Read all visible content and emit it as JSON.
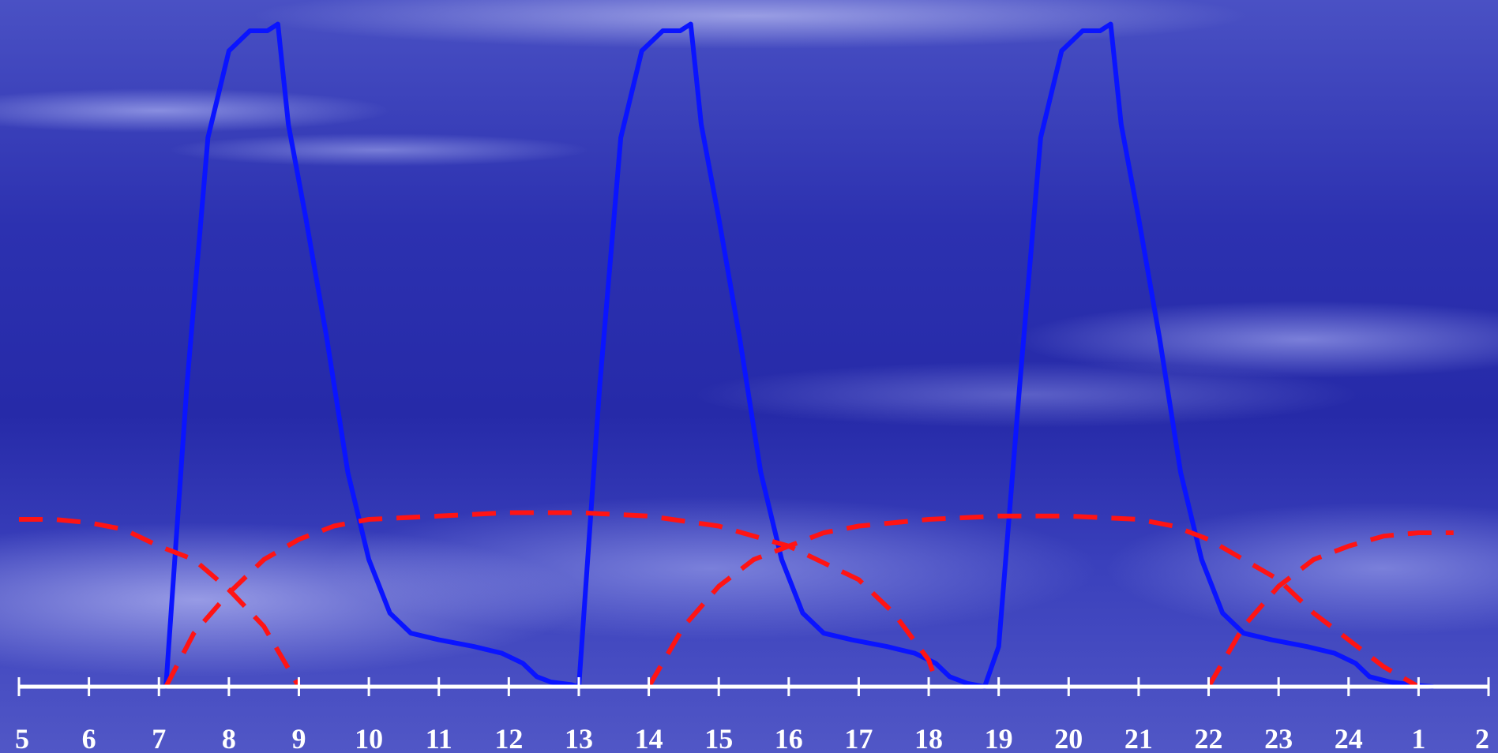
{
  "chart_data": {
    "type": "line",
    "title": "",
    "xlabel": "",
    "ylabel": "",
    "grid": false,
    "legend": "none",
    "x_tick_labels": [
      "5",
      "6",
      "7",
      "8",
      "9",
      "10",
      "11",
      "12",
      "13",
      "14",
      "15",
      "16",
      "17",
      "18",
      "19",
      "20",
      "21",
      "22",
      "23",
      "24",
      "1",
      "2"
    ],
    "xlim": [
      5,
      26
    ],
    "ylim": [
      0,
      100
    ],
    "colors": {
      "solid_line": "#0a14ff",
      "dashed_line": "#ff1414",
      "axis": "#ffffff",
      "tick_text": "#ffffff"
    },
    "series": [
      {
        "style": "solid",
        "points": [
          [
            7.1,
            0
          ],
          [
            7.4,
            45
          ],
          [
            7.7,
            82
          ],
          [
            8.0,
            95
          ],
          [
            8.3,
            98
          ],
          [
            8.55,
            98
          ],
          [
            8.7,
            99
          ],
          [
            8.85,
            84
          ],
          [
            9.1,
            70
          ],
          [
            9.4,
            52
          ],
          [
            9.7,
            32
          ],
          [
            10.0,
            19
          ],
          [
            10.3,
            11
          ],
          [
            10.6,
            8
          ],
          [
            11.0,
            7
          ],
          [
            11.5,
            6
          ],
          [
            11.9,
            5
          ],
          [
            12.2,
            3.5
          ],
          [
            12.4,
            1.5
          ],
          [
            12.6,
            0.7
          ],
          [
            12.9,
            0.3
          ],
          [
            13.0,
            0
          ],
          [
            13.3,
            45
          ],
          [
            13.6,
            82
          ],
          [
            13.9,
            95
          ],
          [
            14.2,
            98
          ],
          [
            14.45,
            98
          ],
          [
            14.6,
            99
          ],
          [
            14.75,
            84
          ],
          [
            15.0,
            70
          ],
          [
            15.3,
            52
          ],
          [
            15.6,
            32
          ],
          [
            15.9,
            19
          ],
          [
            16.2,
            11
          ],
          [
            16.5,
            8
          ],
          [
            16.9,
            7
          ],
          [
            17.4,
            6
          ],
          [
            17.8,
            5
          ],
          [
            18.1,
            3.5
          ],
          [
            18.3,
            1.5
          ],
          [
            18.55,
            0.5
          ],
          [
            18.8,
            0
          ],
          [
            19.0,
            6
          ],
          [
            19.3,
            45
          ],
          [
            19.6,
            82
          ],
          [
            19.9,
            95
          ],
          [
            20.2,
            98
          ],
          [
            20.45,
            98
          ],
          [
            20.6,
            99
          ],
          [
            20.75,
            84
          ],
          [
            21.0,
            70
          ],
          [
            21.3,
            52
          ],
          [
            21.6,
            32
          ],
          [
            21.9,
            19
          ],
          [
            22.2,
            11
          ],
          [
            22.5,
            8
          ],
          [
            22.9,
            7
          ],
          [
            23.4,
            6
          ],
          [
            23.8,
            5
          ],
          [
            24.1,
            3.5
          ],
          [
            24.3,
            1.5
          ],
          [
            24.6,
            0.7
          ],
          [
            24.9,
            0.3
          ],
          [
            25.2,
            0
          ]
        ]
      },
      {
        "style": "dashed",
        "points": [
          [
            5.0,
            25
          ],
          [
            5.5,
            25
          ],
          [
            6.0,
            24.5
          ],
          [
            6.5,
            23.5
          ],
          [
            7.0,
            21
          ],
          [
            7.5,
            19
          ],
          [
            8.0,
            14.5
          ],
          [
            8.5,
            9
          ],
          [
            9.0,
            0
          ]
        ]
      },
      {
        "style": "dashed",
        "points": [
          [
            7.1,
            0
          ],
          [
            7.5,
            8
          ],
          [
            8.0,
            14
          ],
          [
            8.5,
            19
          ],
          [
            9.0,
            22
          ],
          [
            9.5,
            24
          ],
          [
            10.0,
            25
          ],
          [
            11.0,
            25.5
          ],
          [
            12.0,
            26
          ],
          [
            13.0,
            26
          ],
          [
            14.0,
            25.5
          ],
          [
            15.0,
            24
          ],
          [
            16.0,
            21
          ],
          [
            17.0,
            16
          ],
          [
            17.5,
            11
          ],
          [
            18.0,
            4
          ],
          [
            18.1,
            1
          ]
        ]
      },
      {
        "style": "dashed",
        "points": [
          [
            14.0,
            0
          ],
          [
            14.5,
            9
          ],
          [
            15.0,
            15
          ],
          [
            15.5,
            19
          ],
          [
            16.0,
            21
          ],
          [
            16.5,
            23
          ],
          [
            17.0,
            24
          ],
          [
            18.0,
            25
          ],
          [
            19.0,
            25.5
          ],
          [
            20.0,
            25.5
          ],
          [
            21.0,
            25
          ],
          [
            21.5,
            24
          ],
          [
            22.0,
            22
          ],
          [
            22.5,
            19
          ],
          [
            23.0,
            16
          ],
          [
            23.5,
            11
          ],
          [
            24.0,
            7
          ],
          [
            24.5,
            3
          ],
          [
            25.0,
            0
          ]
        ]
      },
      {
        "style": "dashed",
        "points": [
          [
            22.0,
            0
          ],
          [
            22.5,
            9
          ],
          [
            23.0,
            15
          ],
          [
            23.5,
            19
          ],
          [
            24.0,
            21
          ],
          [
            24.5,
            22.5
          ],
          [
            25.0,
            23
          ],
          [
            25.5,
            23
          ]
        ]
      }
    ]
  }
}
